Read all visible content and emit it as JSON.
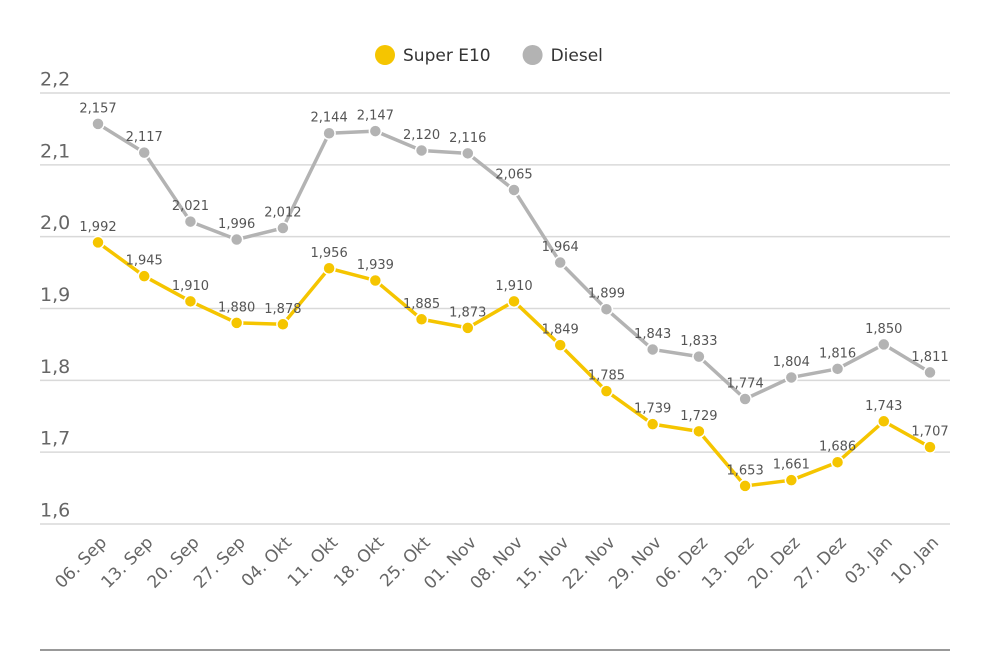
{
  "chart_data": {
    "type": "line",
    "categories": [
      "06. Sep",
      "13. Sep",
      "20. Sep",
      "27. Sep",
      "04. Okt",
      "11. Okt",
      "18. Okt",
      "25. Okt",
      "01. Nov",
      "08. Nov",
      "15. Nov",
      "22. Nov",
      "29. Nov",
      "06. Dez",
      "13. Dez",
      "20. Dez",
      "27. Dez",
      "03. Jan",
      "10. Jan"
    ],
    "series": [
      {
        "name": "Super E10",
        "color": "#f5c500",
        "values": [
          1.992,
          1.945,
          1.91,
          1.88,
          1.878,
          1.956,
          1.939,
          1.885,
          1.873,
          1.91,
          1.849,
          1.785,
          1.739,
          1.729,
          1.653,
          1.661,
          1.686,
          1.743,
          1.707
        ],
        "value_labels": [
          "1,992",
          "1,945",
          "1,910",
          "1,880",
          "1,878",
          "1,956",
          "1,939",
          "1,885",
          "1,873",
          "1,910",
          "1,849",
          "1,785",
          "1,739",
          "1,729",
          "1,653",
          "1,661",
          "1,686",
          "1,743",
          "1,707"
        ]
      },
      {
        "name": "Diesel",
        "color": "#b3b3b3",
        "values": [
          2.157,
          2.117,
          2.021,
          1.996,
          2.012,
          2.144,
          2.147,
          2.12,
          2.116,
          2.065,
          1.964,
          1.899,
          1.843,
          1.833,
          1.774,
          1.804,
          1.816,
          1.85,
          1.811
        ],
        "value_labels": [
          "2,157",
          "2,117",
          "2,021",
          "1,996",
          "2,012",
          "2,144",
          "2,147",
          "2,120",
          "2,116",
          "2,065",
          "1,964",
          "1,899",
          "1,843",
          "1,833",
          "1,774",
          "1,804",
          "1,816",
          "1,850",
          "1,811"
        ]
      }
    ],
    "ylim": [
      1.6,
      2.2
    ],
    "yticks": [
      {
        "value": 1.6,
        "label": "1,6"
      },
      {
        "value": 1.7,
        "label": "1,7"
      },
      {
        "value": 1.8,
        "label": "1,8"
      },
      {
        "value": 1.9,
        "label": "1,9"
      },
      {
        "value": 2.0,
        "label": "2,0"
      },
      {
        "value": 2.1,
        "label": "2,1"
      },
      {
        "value": 2.2,
        "label": "2,2"
      }
    ],
    "grid": true,
    "legend": "top"
  }
}
